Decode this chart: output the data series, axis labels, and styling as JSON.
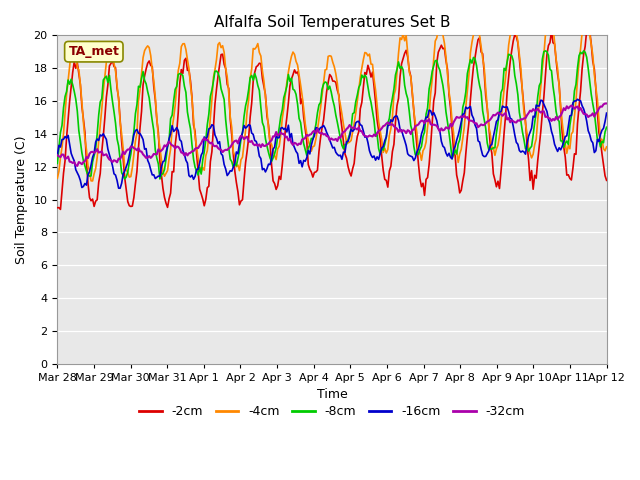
{
  "title": "Alfalfa Soil Temperatures Set B",
  "xlabel": "Time",
  "ylabel": "Soil Temperature (C)",
  "ylim": [
    0,
    20
  ],
  "yticks": [
    0,
    2,
    4,
    6,
    8,
    10,
    12,
    14,
    16,
    18,
    20
  ],
  "xtick_labels": [
    "Mar 28",
    "Mar 29",
    "Mar 30",
    "Mar 31",
    "Apr 1",
    "Apr 2",
    "Apr 3",
    "Apr 4",
    "Apr 5",
    "Apr 6",
    "Apr 7",
    "Apr 8",
    "Apr 9",
    "Apr 10",
    "Apr 11",
    "Apr 12"
  ],
  "legend_labels": [
    "-2cm",
    "-4cm",
    "-8cm",
    "-16cm",
    "-32cm"
  ],
  "line_colors": [
    "#dd0000",
    "#ff8800",
    "#00cc00",
    "#0000cc",
    "#aa00aa"
  ],
  "annotation_text": "TA_met",
  "annotation_bg": "#ffffcc",
  "annotation_border": "#888800",
  "plot_bg_color": "#e8e8e8",
  "title_fontsize": 11,
  "axis_fontsize": 9,
  "tick_fontsize": 8
}
